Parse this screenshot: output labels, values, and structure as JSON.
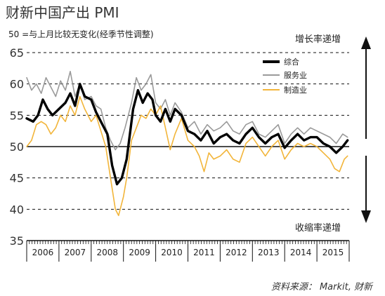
{
  "header": {
    "title": "财新中国产出 PMI",
    "subtitle": "50 =与上月比较无变化(经季节性调整)"
  },
  "source": "资料来源： Markit, 财新",
  "annotations": {
    "increase": "增长率递增",
    "decrease": "收缩率递增"
  },
  "colors": {
    "composite": "#000000",
    "services": "#9a9a9a",
    "manufacturing": "#f2b53a",
    "grid": "#111111"
  },
  "chart_data": {
    "type": "line",
    "title": "财新中国产出 PMI",
    "subtitle": "50 =与上月比较无变化(经季节性调整)",
    "xlabel": "",
    "ylabel": "",
    "ylim": [
      35,
      65
    ],
    "yticks": [
      35,
      40,
      45,
      50,
      55,
      60,
      65
    ],
    "x_categories": [
      "2006",
      "2007",
      "2008",
      "2009",
      "2010",
      "2011",
      "2012",
      "2013",
      "2014",
      "2015"
    ],
    "grid": "dashed horizontal",
    "legend_position": "top-right",
    "reference_line": 50,
    "series": [
      {
        "name": "综合",
        "key": "composite",
        "values": [
          {
            "x": 2006.0,
            "y": 54.5
          },
          {
            "x": 2006.2,
            "y": 54.0
          },
          {
            "x": 2006.35,
            "y": 55.0
          },
          {
            "x": 2006.5,
            "y": 57.5
          },
          {
            "x": 2006.65,
            "y": 56.0
          },
          {
            "x": 2006.8,
            "y": 55.0
          },
          {
            "x": 2007.0,
            "y": 56.0
          },
          {
            "x": 2007.2,
            "y": 57.0
          },
          {
            "x": 2007.35,
            "y": 58.5
          },
          {
            "x": 2007.5,
            "y": 56.5
          },
          {
            "x": 2007.65,
            "y": 60.0
          },
          {
            "x": 2007.8,
            "y": 58.0
          },
          {
            "x": 2008.0,
            "y": 57.5
          },
          {
            "x": 2008.15,
            "y": 55.5
          },
          {
            "x": 2008.3,
            "y": 54.0
          },
          {
            "x": 2008.5,
            "y": 52.0
          },
          {
            "x": 2008.65,
            "y": 47.0
          },
          {
            "x": 2008.8,
            "y": 44.0
          },
          {
            "x": 2008.95,
            "y": 45.0
          },
          {
            "x": 2009.1,
            "y": 48.0
          },
          {
            "x": 2009.3,
            "y": 56.0
          },
          {
            "x": 2009.45,
            "y": 59.0
          },
          {
            "x": 2009.6,
            "y": 57.0
          },
          {
            "x": 2009.75,
            "y": 58.5
          },
          {
            "x": 2009.9,
            "y": 57.5
          },
          {
            "x": 2010.0,
            "y": 55.0
          },
          {
            "x": 2010.15,
            "y": 54.0
          },
          {
            "x": 2010.3,
            "y": 56.0
          },
          {
            "x": 2010.45,
            "y": 54.0
          },
          {
            "x": 2010.6,
            "y": 56.0
          },
          {
            "x": 2010.8,
            "y": 55.0
          },
          {
            "x": 2011.0,
            "y": 52.5
          },
          {
            "x": 2011.2,
            "y": 52.0
          },
          {
            "x": 2011.4,
            "y": 51.0
          },
          {
            "x": 2011.6,
            "y": 52.5
          },
          {
            "x": 2011.8,
            "y": 50.5
          },
          {
            "x": 2012.0,
            "y": 51.5
          },
          {
            "x": 2012.2,
            "y": 52.0
          },
          {
            "x": 2012.4,
            "y": 51.0
          },
          {
            "x": 2012.6,
            "y": 50.5
          },
          {
            "x": 2012.8,
            "y": 52.0
          },
          {
            "x": 2013.0,
            "y": 53.0
          },
          {
            "x": 2013.2,
            "y": 51.5
          },
          {
            "x": 2013.4,
            "y": 50.5
          },
          {
            "x": 2013.6,
            "y": 51.5
          },
          {
            "x": 2013.8,
            "y": 52.0
          },
          {
            "x": 2014.0,
            "y": 49.8
          },
          {
            "x": 2014.2,
            "y": 51.0
          },
          {
            "x": 2014.4,
            "y": 52.0
          },
          {
            "x": 2014.6,
            "y": 51.0
          },
          {
            "x": 2014.8,
            "y": 51.5
          },
          {
            "x": 2015.0,
            "y": 51.5
          },
          {
            "x": 2015.2,
            "y": 50.5
          },
          {
            "x": 2015.4,
            "y": 50.0
          },
          {
            "x": 2015.6,
            "y": 49.0
          },
          {
            "x": 2015.8,
            "y": 50.0
          },
          {
            "x": 2015.95,
            "y": 51.0
          }
        ]
      },
      {
        "name": "服务业",
        "key": "services",
        "values": [
          {
            "x": 2006.0,
            "y": 61.0
          },
          {
            "x": 2006.15,
            "y": 59.0
          },
          {
            "x": 2006.3,
            "y": 60.0
          },
          {
            "x": 2006.45,
            "y": 58.5
          },
          {
            "x": 2006.6,
            "y": 61.0
          },
          {
            "x": 2006.75,
            "y": 59.5
          },
          {
            "x": 2006.9,
            "y": 58.0
          },
          {
            "x": 2007.05,
            "y": 60.5
          },
          {
            "x": 2007.2,
            "y": 59.0
          },
          {
            "x": 2007.35,
            "y": 62.0
          },
          {
            "x": 2007.5,
            "y": 58.0
          },
          {
            "x": 2007.65,
            "y": 60.0
          },
          {
            "x": 2007.8,
            "y": 57.5
          },
          {
            "x": 2008.0,
            "y": 58.0
          },
          {
            "x": 2008.15,
            "y": 56.5
          },
          {
            "x": 2008.3,
            "y": 56.0
          },
          {
            "x": 2008.45,
            "y": 53.0
          },
          {
            "x": 2008.6,
            "y": 51.0
          },
          {
            "x": 2008.75,
            "y": 49.5
          },
          {
            "x": 2008.9,
            "y": 50.5
          },
          {
            "x": 2009.05,
            "y": 53.0
          },
          {
            "x": 2009.25,
            "y": 57.0
          },
          {
            "x": 2009.4,
            "y": 61.0
          },
          {
            "x": 2009.55,
            "y": 59.0
          },
          {
            "x": 2009.7,
            "y": 60.0
          },
          {
            "x": 2009.85,
            "y": 61.5
          },
          {
            "x": 2010.0,
            "y": 57.0
          },
          {
            "x": 2010.15,
            "y": 56.0
          },
          {
            "x": 2010.3,
            "y": 57.5
          },
          {
            "x": 2010.45,
            "y": 55.0
          },
          {
            "x": 2010.6,
            "y": 57.0
          },
          {
            "x": 2010.8,
            "y": 55.5
          },
          {
            "x": 2011.0,
            "y": 53.0
          },
          {
            "x": 2011.2,
            "y": 54.0
          },
          {
            "x": 2011.4,
            "y": 52.0
          },
          {
            "x": 2011.6,
            "y": 53.5
          },
          {
            "x": 2011.8,
            "y": 52.5
          },
          {
            "x": 2012.0,
            "y": 53.0
          },
          {
            "x": 2012.2,
            "y": 54.0
          },
          {
            "x": 2012.4,
            "y": 52.5
          },
          {
            "x": 2012.6,
            "y": 52.0
          },
          {
            "x": 2012.8,
            "y": 53.5
          },
          {
            "x": 2013.0,
            "y": 54.0
          },
          {
            "x": 2013.2,
            "y": 52.0
          },
          {
            "x": 2013.4,
            "y": 51.5
          },
          {
            "x": 2013.6,
            "y": 52.5
          },
          {
            "x": 2013.8,
            "y": 53.5
          },
          {
            "x": 2014.0,
            "y": 50.5
          },
          {
            "x": 2014.2,
            "y": 52.0
          },
          {
            "x": 2014.4,
            "y": 53.0
          },
          {
            "x": 2014.6,
            "y": 52.0
          },
          {
            "x": 2014.8,
            "y": 53.0
          },
          {
            "x": 2015.0,
            "y": 52.5
          },
          {
            "x": 2015.2,
            "y": 52.0
          },
          {
            "x": 2015.4,
            "y": 51.5
          },
          {
            "x": 2015.6,
            "y": 50.5
          },
          {
            "x": 2015.8,
            "y": 52.0
          },
          {
            "x": 2015.95,
            "y": 51.5
          }
        ]
      },
      {
        "name": "制造业",
        "key": "manufacturing",
        "values": [
          {
            "x": 2006.0,
            "y": 50.0
          },
          {
            "x": 2006.15,
            "y": 51.0
          },
          {
            "x": 2006.3,
            "y": 53.5
          },
          {
            "x": 2006.45,
            "y": 54.0
          },
          {
            "x": 2006.6,
            "y": 53.5
          },
          {
            "x": 2006.75,
            "y": 52.0
          },
          {
            "x": 2006.9,
            "y": 53.0
          },
          {
            "x": 2007.05,
            "y": 55.0
          },
          {
            "x": 2007.2,
            "y": 54.0
          },
          {
            "x": 2007.35,
            "y": 56.5
          },
          {
            "x": 2007.5,
            "y": 55.0
          },
          {
            "x": 2007.65,
            "y": 58.0
          },
          {
            "x": 2007.8,
            "y": 56.0
          },
          {
            "x": 2008.0,
            "y": 54.0
          },
          {
            "x": 2008.15,
            "y": 55.0
          },
          {
            "x": 2008.3,
            "y": 52.5
          },
          {
            "x": 2008.45,
            "y": 50.0
          },
          {
            "x": 2008.6,
            "y": 45.0
          },
          {
            "x": 2008.75,
            "y": 40.0
          },
          {
            "x": 2008.85,
            "y": 39.0
          },
          {
            "x": 2009.0,
            "y": 42.0
          },
          {
            "x": 2009.1,
            "y": 45.0
          },
          {
            "x": 2009.25,
            "y": 51.0
          },
          {
            "x": 2009.4,
            "y": 53.0
          },
          {
            "x": 2009.55,
            "y": 55.0
          },
          {
            "x": 2009.7,
            "y": 54.5
          },
          {
            "x": 2009.85,
            "y": 56.0
          },
          {
            "x": 2010.0,
            "y": 55.0
          },
          {
            "x": 2010.15,
            "y": 56.5
          },
          {
            "x": 2010.3,
            "y": 53.0
          },
          {
            "x": 2010.45,
            "y": 49.5
          },
          {
            "x": 2010.6,
            "y": 52.0
          },
          {
            "x": 2010.8,
            "y": 54.5
          },
          {
            "x": 2011.0,
            "y": 51.0
          },
          {
            "x": 2011.2,
            "y": 50.0
          },
          {
            "x": 2011.35,
            "y": 48.5
          },
          {
            "x": 2011.5,
            "y": 46.0
          },
          {
            "x": 2011.65,
            "y": 49.0
          },
          {
            "x": 2011.8,
            "y": 48.0
          },
          {
            "x": 2012.0,
            "y": 48.5
          },
          {
            "x": 2012.2,
            "y": 49.5
          },
          {
            "x": 2012.4,
            "y": 48.0
          },
          {
            "x": 2012.6,
            "y": 47.5
          },
          {
            "x": 2012.8,
            "y": 50.5
          },
          {
            "x": 2013.0,
            "y": 51.5
          },
          {
            "x": 2013.2,
            "y": 50.0
          },
          {
            "x": 2013.4,
            "y": 48.5
          },
          {
            "x": 2013.6,
            "y": 50.0
          },
          {
            "x": 2013.8,
            "y": 51.0
          },
          {
            "x": 2014.0,
            "y": 48.0
          },
          {
            "x": 2014.2,
            "y": 49.5
          },
          {
            "x": 2014.4,
            "y": 50.5
          },
          {
            "x": 2014.6,
            "y": 50.0
          },
          {
            "x": 2014.8,
            "y": 50.5
          },
          {
            "x": 2015.0,
            "y": 50.0
          },
          {
            "x": 2015.2,
            "y": 49.0
          },
          {
            "x": 2015.4,
            "y": 48.0
          },
          {
            "x": 2015.55,
            "y": 46.5
          },
          {
            "x": 2015.7,
            "y": 46.0
          },
          {
            "x": 2015.85,
            "y": 48.0
          },
          {
            "x": 2015.95,
            "y": 48.5
          }
        ]
      }
    ]
  }
}
